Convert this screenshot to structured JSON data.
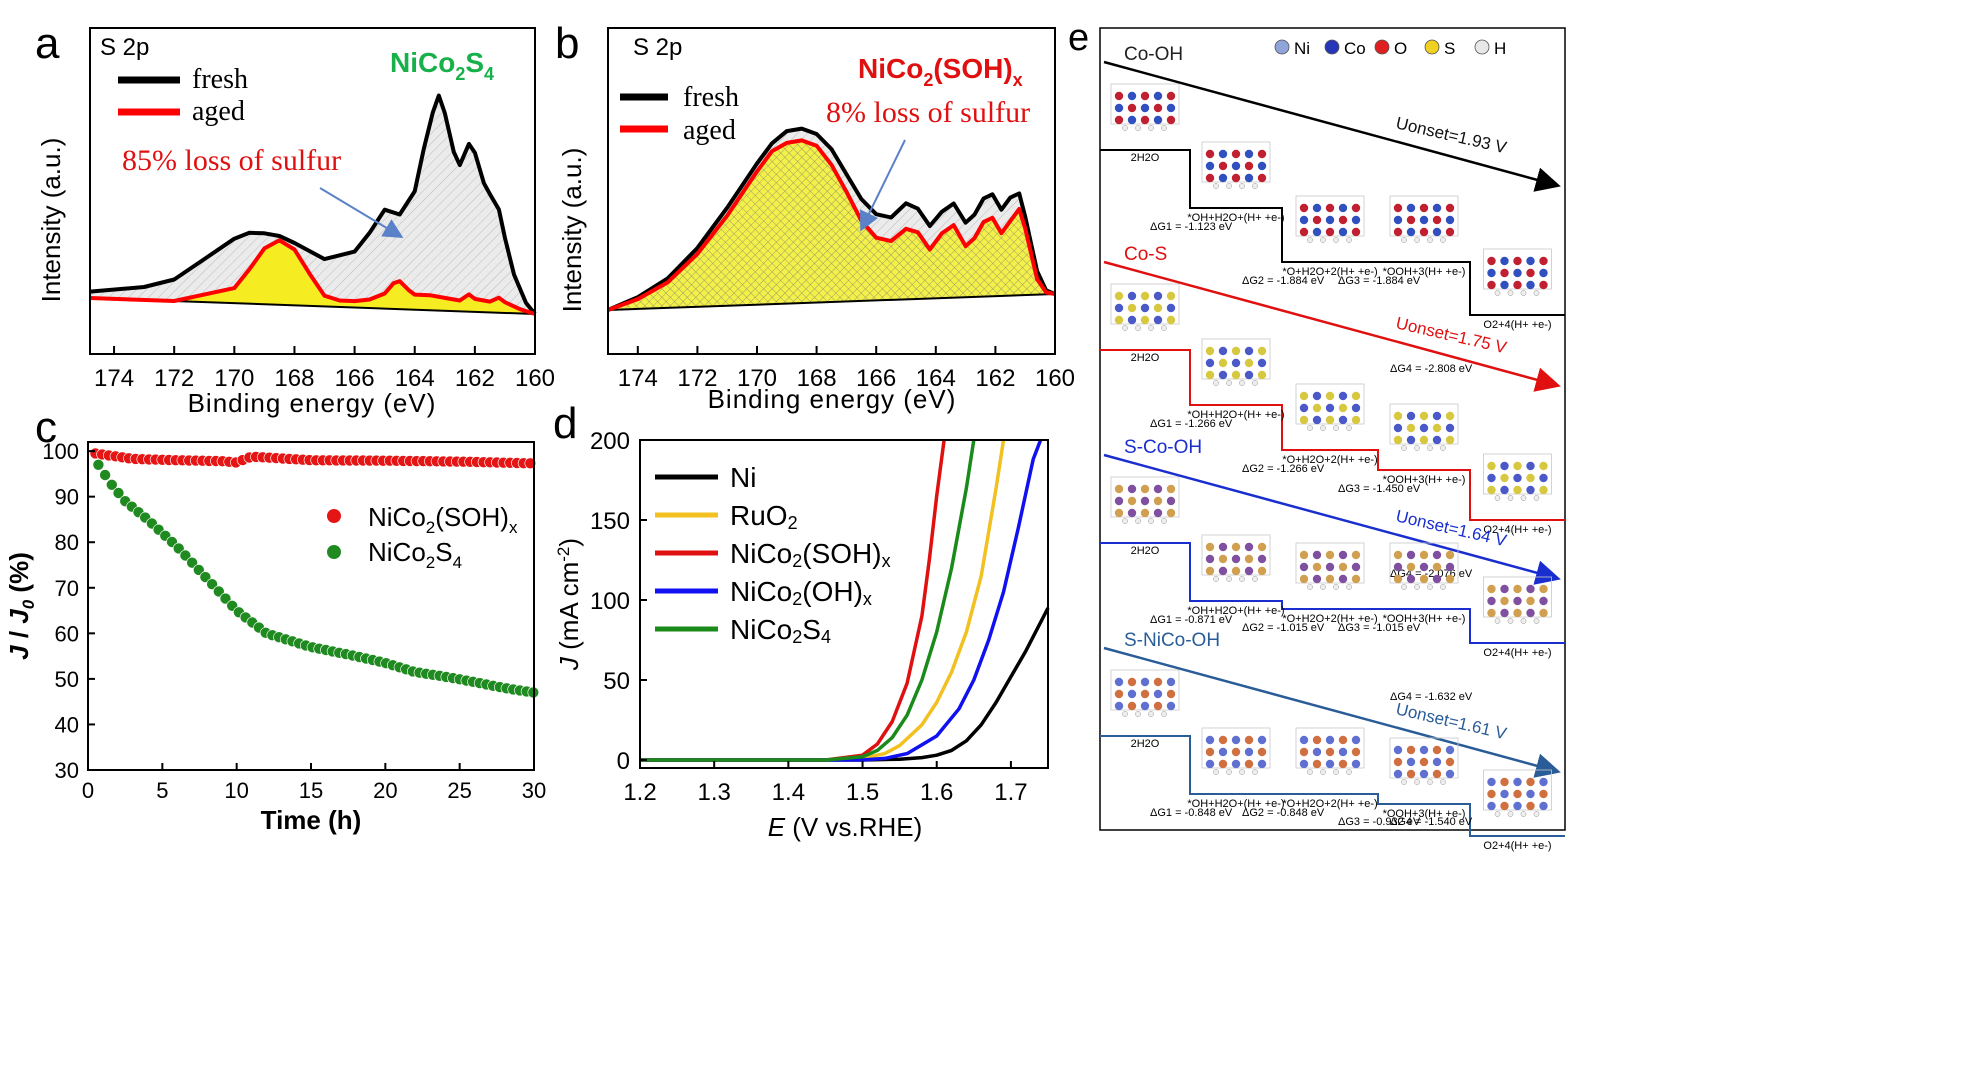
{
  "panels": {
    "a": {
      "letter": "a",
      "tag": "S 2p",
      "legend": [
        "fresh",
        "aged"
      ],
      "material": "NiCo2S4",
      "material_parts": [
        "NiCo",
        "2",
        "S",
        "4"
      ],
      "annotation": "85% loss of sulfur",
      "ylabel": "Intensity (a.u.)",
      "xlabel": "Binding energy (eV)"
    },
    "b": {
      "letter": "b",
      "tag": "S 2p",
      "legend": [
        "fresh",
        "aged"
      ],
      "material": "NiCo2(SOH)x",
      "material_parts": [
        "NiCo",
        "2",
        "(SOH)",
        "x"
      ],
      "annotation": "8% loss of sulfur",
      "ylabel": "Intensity (a.u.)",
      "xlabel": "Binding energy (eV)"
    },
    "c": {
      "letter": "c",
      "xlabel": "Time (h)",
      "ylabel": "J / J0 (%)",
      "legend": [
        "NiCo2(SOH)x",
        "NiCo2S4"
      ]
    },
    "d": {
      "letter": "d",
      "xlabel": "E (V vs.RHE)",
      "ylabel": "J (mA cm-2)"
    },
    "e": {
      "letter": "e",
      "atoms": [
        {
          "label": "Ni",
          "color": "#8fa4d8"
        },
        {
          "label": "Co",
          "color": "#2636b8"
        },
        {
          "label": "O",
          "color": "#e02020"
        },
        {
          "label": "S",
          "color": "#f0d020"
        },
        {
          "label": "H",
          "color": "#e8e8e8"
        }
      ]
    }
  },
  "chart_data": [
    {
      "panel": "a",
      "type": "area",
      "title": "",
      "xlabel": "Binding energy (eV)",
      "ylabel": "Intensity (a.u.)",
      "xlim": [
        174.8,
        160
      ],
      "x_reversed": true,
      "xticks": [
        174,
        172,
        170,
        168,
        166,
        164,
        162,
        160
      ],
      "series": [
        {
          "name": "fresh",
          "color": "#000000",
          "x": [
            174.8,
            173,
            172,
            171,
            170,
            169.5,
            169,
            168.5,
            168,
            167,
            166,
            165.5,
            165,
            164.5,
            164,
            163.7,
            163.4,
            163.2,
            163,
            162.7,
            162.5,
            162.2,
            162,
            161.7,
            161.5,
            161.2,
            161,
            160.7,
            160.3,
            160
          ],
          "y": [
            0.03,
            0.06,
            0.1,
            0.2,
            0.3,
            0.33,
            0.33,
            0.32,
            0.29,
            0.22,
            0.26,
            0.35,
            0.46,
            0.44,
            0.55,
            0.75,
            0.92,
            1.0,
            0.92,
            0.74,
            0.68,
            0.78,
            0.74,
            0.6,
            0.55,
            0.48,
            0.35,
            0.18,
            0.05,
            0.0
          ]
        },
        {
          "name": "aged",
          "color": "#ff0000",
          "x": [
            174.8,
            172,
            170,
            169.5,
            169,
            168.5,
            168,
            167.5,
            167,
            166.5,
            166,
            165.5,
            165,
            164.7,
            164.5,
            164.2,
            164,
            163.5,
            163,
            162.5,
            162.2,
            162,
            161.5,
            161.2,
            161,
            160.5,
            160
          ],
          "y": [
            0.0,
            0.0,
            0.07,
            0.16,
            0.26,
            0.3,
            0.26,
            0.15,
            0.05,
            0.03,
            0.03,
            0.04,
            0.07,
            0.12,
            0.13,
            0.09,
            0.07,
            0.07,
            0.06,
            0.05,
            0.08,
            0.06,
            0.05,
            0.07,
            0.05,
            0.02,
            0.0
          ]
        }
      ]
    },
    {
      "panel": "b",
      "type": "area",
      "title": "",
      "xlabel": "Binding energy (eV)",
      "ylabel": "Intensity (a.u.)",
      "xlim": [
        175,
        160
      ],
      "x_reversed": true,
      "xticks": [
        174,
        172,
        170,
        168,
        166,
        164,
        162,
        160
      ],
      "series": [
        {
          "name": "fresh",
          "color": "#000000",
          "x": [
            175,
            174,
            173,
            172,
            171,
            170,
            169.5,
            169,
            168.5,
            168,
            167.5,
            167,
            166.5,
            166,
            165.5,
            165,
            164.6,
            164.2,
            163.8,
            163.4,
            163,
            162.7,
            162.4,
            162.1,
            161.8,
            161.5,
            161.2,
            161,
            160.6,
            160.3,
            160
          ],
          "y": [
            0.0,
            0.06,
            0.15,
            0.3,
            0.5,
            0.72,
            0.82,
            0.88,
            0.89,
            0.86,
            0.78,
            0.65,
            0.52,
            0.44,
            0.42,
            0.49,
            0.46,
            0.37,
            0.44,
            0.48,
            0.38,
            0.42,
            0.5,
            0.52,
            0.44,
            0.5,
            0.52,
            0.4,
            0.12,
            0.02,
            0.0
          ]
        },
        {
          "name": "aged",
          "color": "#ff0000",
          "x": [
            175,
            174,
            173,
            172,
            171,
            170,
            169.5,
            169,
            168.5,
            168,
            167.5,
            167,
            166.5,
            166,
            165.5,
            165,
            164.6,
            164.2,
            163.8,
            163.4,
            163,
            162.7,
            162.4,
            162.1,
            161.8,
            161.5,
            161.2,
            161,
            160.6,
            160.3,
            160
          ],
          "y": [
            0.0,
            0.05,
            0.13,
            0.27,
            0.46,
            0.68,
            0.78,
            0.82,
            0.83,
            0.8,
            0.7,
            0.56,
            0.41,
            0.32,
            0.3,
            0.36,
            0.34,
            0.25,
            0.33,
            0.37,
            0.26,
            0.3,
            0.38,
            0.4,
            0.32,
            0.38,
            0.44,
            0.34,
            0.08,
            0.01,
            0.0
          ]
        }
      ]
    },
    {
      "panel": "c",
      "type": "scatter",
      "title": "",
      "xlabel": "Time (h)",
      "ylabel": "J / J0 (%)",
      "xlim": [
        0,
        30
      ],
      "ylim": [
        30,
        102
      ],
      "xticks": [
        0,
        5,
        10,
        15,
        20,
        25,
        30
      ],
      "yticks": [
        30,
        40,
        50,
        60,
        70,
        80,
        90,
        100
      ],
      "series": [
        {
          "name": "NiCo2(SOH)x",
          "color": "#e51515",
          "x": [
            0.5,
            3,
            6,
            9,
            10,
            11,
            15,
            20,
            25,
            30
          ],
          "y": [
            99.5,
            98.3,
            98,
            97.8,
            97.5,
            98.8,
            98,
            97.9,
            97.7,
            97.3
          ]
        },
        {
          "name": "NiCo2S4",
          "color": "#1f8a1f",
          "x": [
            0.7,
            1.5,
            2.5,
            4,
            6,
            8,
            10,
            12,
            15,
            18,
            20,
            22,
            24,
            26,
            28,
            30
          ],
          "y": [
            97,
            93,
            89,
            85,
            79,
            72,
            65,
            60,
            57,
            55,
            53.5,
            51.5,
            50.5,
            49.3,
            48,
            47
          ]
        }
      ]
    },
    {
      "panel": "d",
      "type": "line",
      "title": "",
      "xlabel": "E (V vs.RHE)",
      "ylabel": "J (mA cm-2)",
      "xlim": [
        1.2,
        1.75
      ],
      "ylim": [
        -5,
        200
      ],
      "xticks": [
        1.2,
        1.3,
        1.4,
        1.5,
        1.6,
        1.7
      ],
      "yticks": [
        0,
        50,
        100,
        150,
        200
      ],
      "series": [
        {
          "name": "Ni",
          "color": "#000000",
          "x": [
            1.2,
            1.5,
            1.55,
            1.58,
            1.6,
            1.62,
            1.64,
            1.66,
            1.68,
            1.7,
            1.72,
            1.75
          ],
          "y": [
            0,
            0,
            0.5,
            1.5,
            3,
            6,
            12,
            22,
            36,
            52,
            68,
            95
          ]
        },
        {
          "name": "RuO2",
          "color": "#f2c020",
          "x": [
            1.2,
            1.45,
            1.5,
            1.53,
            1.55,
            1.58,
            1.6,
            1.62,
            1.64,
            1.66,
            1.68,
            1.69
          ],
          "y": [
            0,
            0,
            1,
            4,
            9,
            22,
            36,
            55,
            80,
            115,
            170,
            200
          ]
        },
        {
          "name": "NiCo2(SOH)x",
          "color": "#e01010",
          "x": [
            1.2,
            1.45,
            1.5,
            1.52,
            1.54,
            1.56,
            1.58,
            1.59,
            1.6,
            1.61
          ],
          "y": [
            0,
            0,
            3,
            10,
            24,
            48,
            90,
            125,
            165,
            200
          ]
        },
        {
          "name": "NiCo2(OH)x",
          "color": "#1010f0",
          "x": [
            1.2,
            1.5,
            1.53,
            1.56,
            1.6,
            1.63,
            1.65,
            1.67,
            1.69,
            1.71,
            1.73,
            1.74
          ],
          "y": [
            0,
            0,
            1,
            4,
            15,
            32,
            50,
            75,
            105,
            145,
            188,
            200
          ]
        },
        {
          "name": "NiCo2S4",
          "color": "#1a8a1a",
          "x": [
            1.2,
            1.45,
            1.5,
            1.52,
            1.54,
            1.56,
            1.58,
            1.6,
            1.62,
            1.64,
            1.65
          ],
          "y": [
            0,
            0,
            2,
            6,
            14,
            28,
            50,
            80,
            120,
            170,
            200
          ]
        }
      ]
    },
    {
      "panel": "e",
      "type": "line",
      "title": "",
      "xlabel": "",
      "ylabel": "",
      "series": [
        {
          "name": "Co-OH",
          "color": "#000000",
          "onset": "Uonset=1.93 V",
          "state_labels": [
            "2H2O",
            "*OH+H2O+(H+ +e-)",
            "*O+H2O+2(H+ +e-)",
            "*OOH+3(H+ +e-)",
            "O2+4(H+ +e-)"
          ],
          "dG_labels": [
            "ΔG1 = -1.123 eV",
            "ΔG2 = -1.884 eV",
            "ΔG3 = -1.884 eV",
            "ΔG4 = -2.808 eV"
          ]
        },
        {
          "name": "Co-S",
          "color": "#e01010",
          "onset": "Uonset=1.75 V",
          "state_labels": [
            "2H2O",
            "*OH+H2O+(H+ +e-)",
            "*O+H2O+2(H+ +e-)",
            "*OOH+3(H+ +e-)",
            "O2+4(H+ +e-)"
          ],
          "dG_labels": [
            "ΔG1 = -1.266 eV",
            "ΔG2 = -1.266 eV",
            "ΔG3 = -1.450 eV",
            "ΔG4 = -2.076 eV"
          ]
        },
        {
          "name": "S-Co-OH",
          "color": "#1a2ed0",
          "onset": "Uonset=1.64 V",
          "state_labels": [
            "2H2O",
            "*OH+H2O+(H+ +e-)",
            "*O+H2O+2(H+ +e-)",
            "*OOH+3(H+ +e-)",
            "O2+4(H+ +e-)"
          ],
          "dG_labels": [
            "ΔG1 = -0.871 eV",
            "ΔG2 = -1.015 eV",
            "ΔG3 = -1.015 eV",
            "ΔG4 = -1.632 eV"
          ]
        },
        {
          "name": "S-NiCo-OH",
          "color": "#2a5c98",
          "onset": "Uonset=1.61 V",
          "state_labels": [
            "2H2O",
            "*OH+H2O+(H+ +e-)",
            "*O+H2O+2(H+ +e-)",
            "*OOH+3(H+ +e-)",
            "O2+4(H+ +e-)"
          ],
          "dG_labels": [
            "ΔG1 = -0.848 eV",
            "ΔG2 = -0.848 eV",
            "ΔG3 = -0.932 eV",
            "ΔG4 = -1.540 eV"
          ]
        }
      ]
    }
  ]
}
